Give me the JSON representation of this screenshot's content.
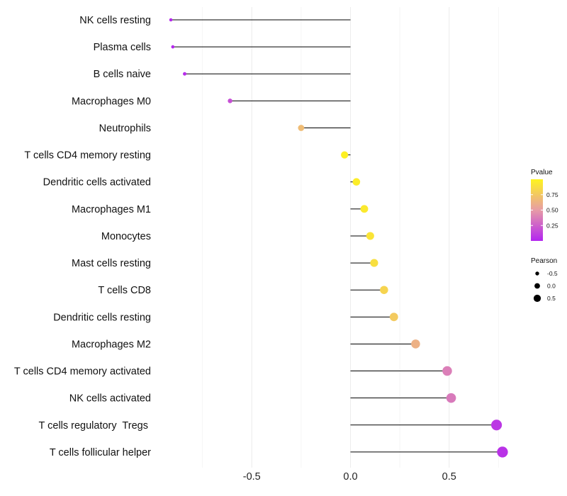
{
  "chart_data": {
    "type": "lollipop",
    "categories": [
      "NK cells resting",
      "Plasma cells",
      "B cells naive",
      "Macrophages M0",
      "Neutrophils",
      "T cells CD4 memory resting",
      "Dendritic cells activated",
      "Macrophages M1",
      "Monocytes",
      "Mast cells resting",
      "T cells CD8",
      "Dendritic cells resting",
      "Macrophages M2",
      "T cells CD4 memory activated",
      "NK cells activated",
      "T cells regulatory  Tregs ",
      "T cells follicular helper"
    ],
    "values": [
      -0.91,
      -0.9,
      -0.84,
      -0.61,
      -0.25,
      -0.03,
      0.03,
      0.07,
      0.1,
      0.12,
      0.17,
      0.22,
      0.33,
      0.49,
      0.51,
      0.74,
      0.77
    ],
    "pvalues": [
      0.02,
      0.02,
      0.04,
      0.18,
      0.68,
      0.98,
      0.96,
      0.94,
      0.91,
      0.88,
      0.82,
      0.76,
      0.62,
      0.38,
      0.36,
      0.08,
      0.06
    ],
    "xlim": [
      -1.0,
      0.95
    ],
    "x_ticks": [
      -0.5,
      0.0,
      0.5
    ],
    "x_tick_labels": [
      "-0.5",
      "0.0",
      "0.5"
    ],
    "title": "",
    "xlabel": "",
    "ylabel": "",
    "grid": true,
    "legend": {
      "position": "right",
      "color_title": "Pvalue",
      "color_ticks": [
        0.25,
        0.5,
        0.75
      ],
      "color_tick_labels": [
        "0.25",
        "0.50",
        "0.75"
      ],
      "color_range": [
        0.0,
        1.0
      ],
      "color_low": "#b324f0",
      "color_mid": "#e79ca6",
      "color_high": "#fef41e",
      "size_title": "Pearson",
      "size_values": [
        -0.5,
        0.0,
        0.5
      ],
      "size_labels": [
        "-0.5",
        "0.0",
        "0.5"
      ]
    }
  }
}
